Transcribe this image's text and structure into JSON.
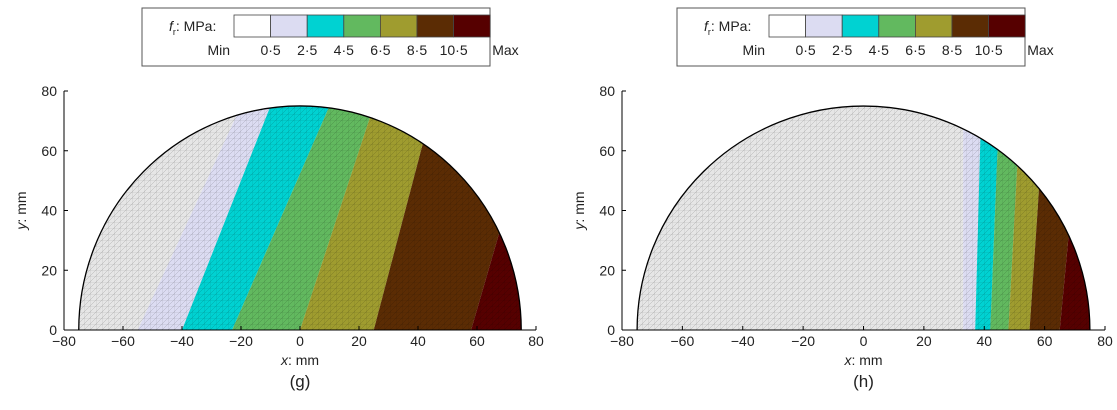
{
  "legend": {
    "variable": "f",
    "subscript": "r",
    "unit_label": ": MPa:",
    "levels": [
      "Min",
      "0·5",
      "2·5",
      "4·5",
      "6·5",
      "8·5",
      "10·5",
      "Max"
    ],
    "colors": [
      "#ffffff",
      "#dcdcf2",
      "#00d2d2",
      "#62b95f",
      "#9f9c2f",
      "#5b2c04",
      "#560000"
    ]
  },
  "axes": {
    "xlabel_var": "x",
    "xlabel_unit": ": mm",
    "ylabel_var": "y",
    "ylabel_unit": ": mm",
    "xticks": [
      "−80",
      "−60",
      "−40",
      "−20",
      "0",
      "20",
      "40",
      "60",
      "80"
    ],
    "yticks": [
      "0",
      "20",
      "40",
      "60",
      "80"
    ]
  },
  "chart_data": [
    {
      "type": "heatmap",
      "panel_label": "(g)",
      "xlim": [
        -80,
        80
      ],
      "ylim": [
        0,
        80
      ],
      "domain": "semicircle of radius 75 mm",
      "band_colors": [
        "#e6e6e6",
        "#dcdcf2",
        "#00d2d2",
        "#62b95f",
        "#9f9c2f",
        "#5b2c04",
        "#560000"
      ],
      "boundaries": [
        {
          "y0": -55,
          "y75": -20
        },
        {
          "y0": -40,
          "y75": -10
        },
        {
          "y0": -23,
          "y75": 10
        },
        {
          "y0": 0,
          "y75": 25
        },
        {
          "y0": 25,
          "y75": 45
        },
        {
          "y0": 58,
          "y75": 80
        }
      ]
    },
    {
      "type": "heatmap",
      "panel_label": "(h)",
      "xlim": [
        -80,
        80
      ],
      "ylim": [
        0,
        80
      ],
      "domain": "semicircle of radius 75 mm",
      "band_colors": [
        "#e6e6e6",
        "#dcdcf2",
        "#00d2d2",
        "#62b95f",
        "#9f9c2f",
        "#5b2c04",
        "#560000"
      ],
      "boundaries": [
        {
          "y0": 33,
          "y75": 33
        },
        {
          "y0": 37,
          "y75": 39
        },
        {
          "y0": 42,
          "y75": 45
        },
        {
          "y0": 48,
          "y75": 52
        },
        {
          "y0": 55,
          "y75": 60
        },
        {
          "y0": 65,
          "y75": 72
        }
      ]
    }
  ]
}
